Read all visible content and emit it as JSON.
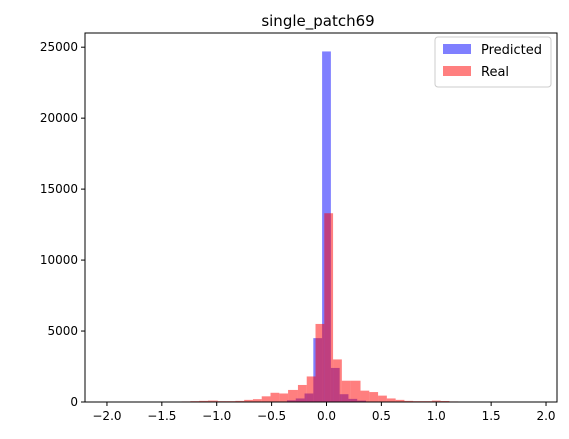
{
  "chart_data": {
    "type": "histogram",
    "title": "single_patch69",
    "xlabel": "",
    "ylabel": "",
    "xlim": [
      -2.2,
      2.1
    ],
    "ylim": [
      0,
      26000
    ],
    "xticks": [
      -2.0,
      -1.5,
      -1.0,
      -0.5,
      0.0,
      0.5,
      1.0,
      1.5,
      2.0
    ],
    "xtick_labels": [
      "−2.0",
      "−1.5",
      "−1.0",
      "−0.5",
      "0.0",
      "0.5",
      "1.0",
      "1.5",
      "2.0"
    ],
    "yticks": [
      0,
      5000,
      10000,
      15000,
      20000,
      25000
    ],
    "ytick_labels": [
      "0",
      "5000",
      "10000",
      "15000",
      "20000",
      "25000"
    ],
    "legend_position": "top-right",
    "grid": false,
    "bin_edges": [
      -2.1,
      -2.0,
      -1.9,
      -1.8,
      -1.7,
      -1.6,
      -1.5,
      -1.4,
      -1.3,
      -1.2,
      -1.1,
      -1.0,
      -0.9,
      -0.8,
      -0.7,
      -0.6,
      -0.5,
      -0.4,
      -0.3,
      -0.2,
      -0.1,
      0.0,
      0.1,
      0.2,
      0.3,
      0.4,
      0.5,
      0.6,
      0.7,
      0.8,
      0.9,
      1.0,
      1.1,
      1.2,
      1.3,
      1.4,
      1.5,
      1.6,
      1.7,
      1.8,
      1.9,
      2.0
    ],
    "series": [
      {
        "name": "Predicted",
        "color": "#0000ff",
        "alpha": 0.5,
        "bin_width": 0.08,
        "bins": [
          {
            "x0": -0.36,
            "x1": -0.28,
            "value": 120
          },
          {
            "x0": -0.28,
            "x1": -0.2,
            "value": 250
          },
          {
            "x0": -0.2,
            "x1": -0.12,
            "value": 600
          },
          {
            "x0": -0.12,
            "x1": -0.04,
            "value": 4500
          },
          {
            "x0": -0.04,
            "x1": 0.04,
            "value": 24700
          },
          {
            "x0": 0.04,
            "x1": 0.12,
            "value": 2400
          },
          {
            "x0": 0.12,
            "x1": 0.2,
            "value": 550
          },
          {
            "x0": 0.2,
            "x1": 0.28,
            "value": 220
          },
          {
            "x0": 0.28,
            "x1": 0.36,
            "value": 100
          }
        ]
      },
      {
        "name": "Real",
        "color": "#ff0000",
        "alpha": 0.5,
        "bin_width": 0.0805,
        "bins": [
          {
            "x0": -2.05,
            "x1": -1.97,
            "value": 5
          },
          {
            "x0": -1.97,
            "x1": -1.89,
            "value": 5
          },
          {
            "x0": -1.89,
            "x1": -1.81,
            "value": 10
          },
          {
            "x0": -1.81,
            "x1": -1.73,
            "value": 10
          },
          {
            "x0": -1.73,
            "x1": -1.64,
            "value": 10
          },
          {
            "x0": -1.64,
            "x1": -1.56,
            "value": 10
          },
          {
            "x0": -1.56,
            "x1": -1.48,
            "value": 20
          },
          {
            "x0": -1.48,
            "x1": -1.4,
            "value": 20
          },
          {
            "x0": -1.4,
            "x1": -1.32,
            "value": 30
          },
          {
            "x0": -1.32,
            "x1": -1.24,
            "value": 40
          },
          {
            "x0": -1.24,
            "x1": -1.16,
            "value": 60
          },
          {
            "x0": -1.16,
            "x1": -1.08,
            "value": 80
          },
          {
            "x0": -1.08,
            "x1": -0.99,
            "value": 100
          },
          {
            "x0": -0.99,
            "x1": -0.91,
            "value": 60
          },
          {
            "x0": -0.91,
            "x1": -0.83,
            "value": 60
          },
          {
            "x0": -0.83,
            "x1": -0.75,
            "value": 80
          },
          {
            "x0": -0.75,
            "x1": -0.67,
            "value": 150
          },
          {
            "x0": -0.67,
            "x1": -0.59,
            "value": 200
          },
          {
            "x0": -0.59,
            "x1": -0.51,
            "value": 400
          },
          {
            "x0": -0.51,
            "x1": -0.43,
            "value": 650
          },
          {
            "x0": -0.43,
            "x1": -0.35,
            "value": 600
          },
          {
            "x0": -0.35,
            "x1": -0.26,
            "value": 850
          },
          {
            "x0": -0.26,
            "x1": -0.18,
            "value": 1200
          },
          {
            "x0": -0.18,
            "x1": -0.1,
            "value": 1800
          },
          {
            "x0": -0.1,
            "x1": -0.02,
            "value": 5500
          },
          {
            "x0": -0.02,
            "x1": 0.06,
            "value": 13300
          },
          {
            "x0": 0.06,
            "x1": 0.14,
            "value": 3000
          },
          {
            "x0": 0.14,
            "x1": 0.22,
            "value": 1500
          },
          {
            "x0": 0.22,
            "x1": 0.31,
            "value": 1500
          },
          {
            "x0": 0.31,
            "x1": 0.39,
            "value": 800
          },
          {
            "x0": 0.39,
            "x1": 0.47,
            "value": 700
          },
          {
            "x0": 0.47,
            "x1": 0.55,
            "value": 450
          },
          {
            "x0": 0.55,
            "x1": 0.63,
            "value": 250
          },
          {
            "x0": 0.63,
            "x1": 0.71,
            "value": 150
          },
          {
            "x0": 0.71,
            "x1": 0.79,
            "value": 80
          },
          {
            "x0": 0.79,
            "x1": 0.87,
            "value": 60
          },
          {
            "x0": 0.87,
            "x1": 0.96,
            "value": 60
          },
          {
            "x0": 0.96,
            "x1": 1.04,
            "value": 100
          },
          {
            "x0": 1.04,
            "x1": 1.12,
            "value": 70
          },
          {
            "x0": 1.12,
            "x1": 1.2,
            "value": 40
          },
          {
            "x0": 1.2,
            "x1": 1.28,
            "value": 30
          },
          {
            "x0": 1.28,
            "x1": 1.36,
            "value": 20
          },
          {
            "x0": 1.36,
            "x1": 1.44,
            "value": 20
          },
          {
            "x0": 1.44,
            "x1": 1.52,
            "value": 10
          },
          {
            "x0": 1.52,
            "x1": 1.61,
            "value": 10
          },
          {
            "x0": 1.61,
            "x1": 1.69,
            "value": 10
          },
          {
            "x0": 1.69,
            "x1": 1.77,
            "value": 5
          },
          {
            "x0": 1.77,
            "x1": 1.85,
            "value": 5
          }
        ]
      }
    ]
  }
}
